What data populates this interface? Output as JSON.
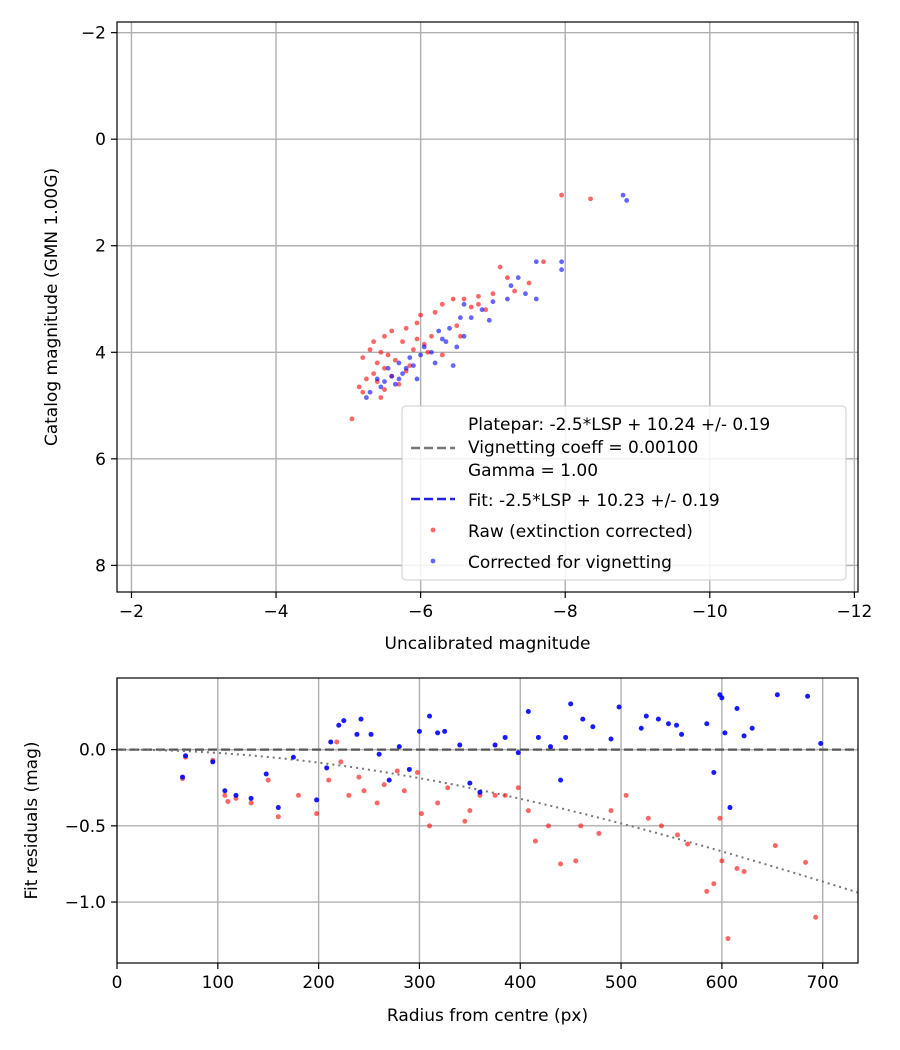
{
  "chart_data": [
    {
      "type": "scatter",
      "xlabel": "Uncalibrated magnitude",
      "ylabel": "Catalog magnitude (GMN 1.00G)",
      "xlim": [
        -1.8,
        -12.05
      ],
      "ylim": [
        -2.2,
        8.5
      ],
      "xticks": [
        -2,
        -4,
        -6,
        -8,
        -10,
        -12
      ],
      "yticks": [
        -2,
        0,
        2,
        4,
        6,
        8
      ],
      "grid": true,
      "legend_position": "lower-right",
      "legend": {
        "platepar_line1": "Platepar: -2.5*LSP + 10.24 +/- 0.19",
        "platepar_line2": "Vignetting coeff = 0.00100",
        "platepar_line3": "Gamma = 1.00",
        "fit": "Fit: -2.5*LSP + 10.23 +/- 0.19",
        "raw": "Raw (extinction corrected)",
        "corrected": "Corrected for vignetting"
      },
      "colors": {
        "raw": "#ff0000",
        "corrected": "#0000ff",
        "fit": "#2222dd",
        "platepar": "#777777"
      },
      "lines": {
        "platepar": {
          "slope": -1.0,
          "intercept": 10.24
        },
        "fit": {
          "slope": -1.0,
          "intercept": 10.23
        }
      },
      "series": [
        {
          "name": "Raw (extinction corrected)",
          "points": [
            [
              -7.95,
              1.05
            ],
            [
              -8.35,
              1.12
            ],
            [
              -7.7,
              2.3
            ],
            [
              -7.1,
              2.4
            ],
            [
              -7.2,
              2.6
            ],
            [
              -7.5,
              2.7
            ],
            [
              -7.0,
              2.9
            ],
            [
              -6.8,
              2.95
            ],
            [
              -6.6,
              3.0
            ],
            [
              -6.45,
              3.0
            ],
            [
              -6.3,
              3.1
            ],
            [
              -6.7,
              3.15
            ],
            [
              -6.9,
              3.2
            ],
            [
              -6.2,
              3.25
            ],
            [
              -6.0,
              3.3
            ],
            [
              -5.95,
              3.45
            ],
            [
              -6.5,
              3.5
            ],
            [
              -5.8,
              3.55
            ],
            [
              -5.6,
              3.6
            ],
            [
              -5.5,
              3.7
            ],
            [
              -6.15,
              3.7
            ],
            [
              -5.35,
              3.8
            ],
            [
              -5.75,
              3.8
            ],
            [
              -6.05,
              3.85
            ],
            [
              -5.3,
              3.95
            ],
            [
              -5.9,
              3.95
            ],
            [
              -5.45,
              4.0
            ],
            [
              -5.55,
              4.05
            ],
            [
              -6.3,
              4.05
            ],
            [
              -5.2,
              4.1
            ],
            [
              -5.65,
              4.15
            ],
            [
              -5.4,
              4.2
            ],
            [
              -5.5,
              4.3
            ],
            [
              -5.35,
              4.4
            ],
            [
              -5.6,
              4.45
            ],
            [
              -5.25,
              4.5
            ],
            [
              -5.4,
              4.55
            ],
            [
              -5.15,
              4.65
            ],
            [
              -5.5,
              4.7
            ],
            [
              -5.2,
              4.75
            ],
            [
              -5.45,
              4.85
            ],
            [
              -5.7,
              4.6
            ],
            [
              -5.8,
              4.35
            ],
            [
              -6.55,
              3.7
            ],
            [
              -6.8,
              3.1
            ],
            [
              -7.3,
              2.85
            ],
            [
              -5.05,
              5.25
            ],
            [
              -5.85,
              4.25
            ],
            [
              -6.1,
              4.0
            ],
            [
              -5.95,
              3.75
            ]
          ]
        },
        {
          "name": "Corrected for vignetting",
          "points": [
            [
              -8.8,
              1.05
            ],
            [
              -8.85,
              1.15
            ],
            [
              -7.6,
              2.3
            ],
            [
              -7.95,
              2.3
            ],
            [
              -7.95,
              2.45
            ],
            [
              -7.35,
              2.6
            ],
            [
              -7.25,
              2.75
            ],
            [
              -7.45,
              2.9
            ],
            [
              -7.6,
              3.0
            ],
            [
              -7.2,
              3.0
            ],
            [
              -7.0,
              3.05
            ],
            [
              -6.85,
              3.2
            ],
            [
              -6.7,
              3.35
            ],
            [
              -6.55,
              3.35
            ],
            [
              -6.95,
              3.4
            ],
            [
              -6.4,
              3.55
            ],
            [
              -6.6,
              3.7
            ],
            [
              -6.3,
              3.75
            ],
            [
              -6.5,
              3.9
            ],
            [
              -6.15,
              4.0
            ],
            [
              -6.0,
              4.05
            ],
            [
              -6.2,
              4.2
            ],
            [
              -5.9,
              4.25
            ],
            [
              -5.8,
              4.3
            ],
            [
              -5.75,
              4.4
            ],
            [
              -5.6,
              4.45
            ],
            [
              -5.7,
              4.5
            ],
            [
              -5.5,
              4.55
            ],
            [
              -5.65,
              4.6
            ],
            [
              -5.45,
              4.65
            ],
            [
              -5.3,
              4.75
            ],
            [
              -5.55,
              4.3
            ],
            [
              -5.85,
              4.1
            ],
            [
              -6.25,
              3.6
            ],
            [
              -6.45,
              4.25
            ],
            [
              -5.95,
              4.5
            ],
            [
              -5.4,
              4.5
            ],
            [
              -5.25,
              4.85
            ],
            [
              -6.05,
              3.9
            ],
            [
              -6.35,
              3.8
            ],
            [
              -5.7,
              4.2
            ],
            [
              -6.6,
              3.1
            ]
          ]
        }
      ]
    },
    {
      "type": "scatter",
      "xlabel": "Radius from centre (px)",
      "ylabel": "Fit residuals (mag)",
      "xlim": [
        0,
        735
      ],
      "ylim": [
        -1.4,
        0.47
      ],
      "xticks": [
        0,
        100,
        200,
        300,
        400,
        500,
        600,
        700
      ],
      "yticks": [
        0.0,
        -0.5,
        -1.0
      ],
      "ytick_labels": [
        "0.0",
        "−0.5",
        "−1.0"
      ],
      "xtick_labels": [
        "0",
        "100",
        "200",
        "300",
        "400",
        "500",
        "600",
        "700"
      ],
      "grid": true,
      "colors": {
        "raw": "#ff0000",
        "corrected": "#0000ff",
        "zero_line": "#555555",
        "model": "#777777"
      },
      "vignetting_coeff": 0.001,
      "series": [
        {
          "name": "Raw (extinction corrected)",
          "points": [
            [
              65,
              -0.19
            ],
            [
              68,
              -0.05
            ],
            [
              95,
              -0.07
            ],
            [
              107,
              -0.3
            ],
            [
              110,
              -0.34
            ],
            [
              118,
              -0.32
            ],
            [
              133,
              -0.35
            ],
            [
              150,
              -0.2
            ],
            [
              160,
              -0.44
            ],
            [
              180,
              -0.3
            ],
            [
              198,
              -0.42
            ],
            [
              210,
              -0.2
            ],
            [
              218,
              0.05
            ],
            [
              222,
              -0.08
            ],
            [
              230,
              -0.3
            ],
            [
              240,
              -0.18
            ],
            [
              245,
              -0.27
            ],
            [
              258,
              -0.35
            ],
            [
              265,
              -0.23
            ],
            [
              278,
              -0.14
            ],
            [
              285,
              -0.27
            ],
            [
              298,
              -0.15
            ],
            [
              302,
              -0.42
            ],
            [
              310,
              -0.5
            ],
            [
              318,
              -0.35
            ],
            [
              328,
              -0.25
            ],
            [
              345,
              -0.47
            ],
            [
              350,
              -0.4
            ],
            [
              360,
              -0.3
            ],
            [
              375,
              -0.3
            ],
            [
              385,
              -0.3
            ],
            [
              398,
              -0.25
            ],
            [
              408,
              -0.4
            ],
            [
              415,
              -0.6
            ],
            [
              428,
              -0.5
            ],
            [
              440,
              -0.75
            ],
            [
              455,
              -0.73
            ],
            [
              460,
              -0.5
            ],
            [
              478,
              -0.55
            ],
            [
              490,
              -0.4
            ],
            [
              505,
              -0.3
            ],
            [
              527,
              -0.45
            ],
            [
              540,
              -0.5
            ],
            [
              556,
              -0.56
            ],
            [
              566,
              -0.62
            ],
            [
              585,
              -0.93
            ],
            [
              592,
              -0.88
            ],
            [
              598,
              -0.45
            ],
            [
              600,
              -0.73
            ],
            [
              606,
              -1.24
            ],
            [
              615,
              -0.78
            ],
            [
              622,
              -0.8
            ],
            [
              653,
              -0.63
            ],
            [
              683,
              -0.74
            ],
            [
              693,
              -1.1
            ]
          ]
        },
        {
          "name": "Corrected for vignetting",
          "points": [
            [
              65,
              -0.18
            ],
            [
              68,
              -0.04
            ],
            [
              95,
              -0.08
            ],
            [
              107,
              -0.27
            ],
            [
              118,
              -0.3
            ],
            [
              133,
              -0.32
            ],
            [
              148,
              -0.16
            ],
            [
              160,
              -0.38
            ],
            [
              175,
              -0.05
            ],
            [
              198,
              -0.33
            ],
            [
              208,
              -0.12
            ],
            [
              212,
              0.05
            ],
            [
              220,
              0.16
            ],
            [
              225,
              0.19
            ],
            [
              238,
              0.1
            ],
            [
              242,
              0.2
            ],
            [
              252,
              0.1
            ],
            [
              260,
              -0.03
            ],
            [
              270,
              -0.2
            ],
            [
              280,
              0.02
            ],
            [
              290,
              -0.13
            ],
            [
              300,
              0.12
            ],
            [
              310,
              0.22
            ],
            [
              318,
              0.11
            ],
            [
              325,
              0.12
            ],
            [
              340,
              0.03
            ],
            [
              350,
              -0.22
            ],
            [
              360,
              -0.28
            ],
            [
              375,
              0.03
            ],
            [
              385,
              0.08
            ],
            [
              398,
              -0.02
            ],
            [
              408,
              0.25
            ],
            [
              418,
              0.08
            ],
            [
              430,
              0.02
            ],
            [
              440,
              -0.2
            ],
            [
              445,
              0.08
            ],
            [
              450,
              0.3
            ],
            [
              462,
              0.2
            ],
            [
              472,
              0.15
            ],
            [
              490,
              0.07
            ],
            [
              498,
              0.28
            ],
            [
              520,
              0.14
            ],
            [
              525,
              0.22
            ],
            [
              537,
              0.2
            ],
            [
              547,
              0.17
            ],
            [
              555,
              0.16
            ],
            [
              560,
              0.1
            ],
            [
              585,
              0.17
            ],
            [
              592,
              -0.15
            ],
            [
              598,
              0.36
            ],
            [
              600,
              0.34
            ],
            [
              603,
              0.11
            ],
            [
              608,
              -0.38
            ],
            [
              615,
              0.27
            ],
            [
              622,
              0.09
            ],
            [
              630,
              0.14
            ],
            [
              655,
              0.36
            ],
            [
              685,
              0.35
            ],
            [
              698,
              0.04
            ]
          ]
        }
      ]
    }
  ]
}
